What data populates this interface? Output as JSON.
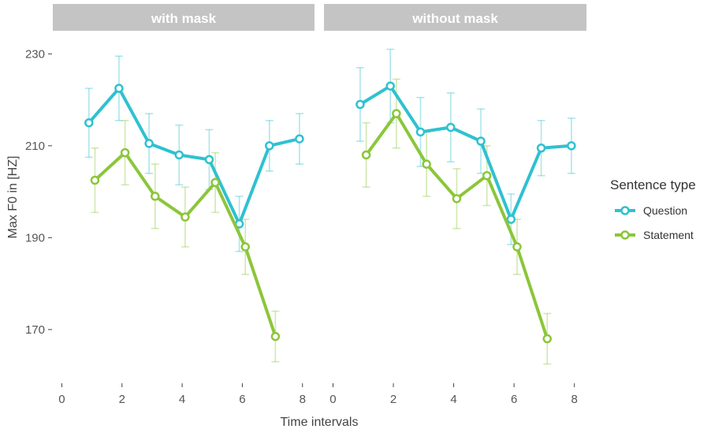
{
  "chart_data": {
    "type": "line",
    "panels": [
      "with mask",
      "without mask"
    ],
    "xlabel": "Time intervals",
    "ylabel": "Max F0 in [HZ]",
    "x_ticks": [
      0,
      2,
      4,
      6,
      8
    ],
    "y_ticks": [
      170,
      190,
      210,
      230
    ],
    "xlim": [
      -0.3,
      8.4
    ],
    "ylim": [
      159,
      234
    ],
    "grid": false,
    "legend": {
      "title": "Sentence type",
      "position": "right",
      "entries": [
        "Question",
        "Statement"
      ]
    },
    "colors": {
      "Question": "#2fc1d0",
      "Statement": "#8bc63a",
      "strip": "#c4c4c4"
    },
    "series": [
      {
        "name": "Question",
        "panel": "with mask",
        "x": [
          0.9,
          1.9,
          2.9,
          3.9,
          4.9,
          5.9,
          6.9,
          7.9
        ],
        "y": [
          215,
          222.5,
          210.5,
          208,
          207,
          193,
          210,
          211.5
        ],
        "err": [
          7.5,
          7,
          6.5,
          6.5,
          6.5,
          6,
          5.5,
          5.5
        ]
      },
      {
        "name": "Statement",
        "panel": "with mask",
        "x": [
          1.1,
          2.1,
          3.1,
          4.1,
          5.1,
          6.1,
          7.1
        ],
        "y": [
          202.5,
          208.5,
          199,
          194.5,
          202,
          188,
          168.5
        ],
        "err": [
          7,
          7,
          7,
          6.5,
          6.5,
          6,
          5.5
        ]
      },
      {
        "name": "Question",
        "panel": "without mask",
        "x": [
          0.9,
          1.9,
          2.9,
          3.9,
          4.9,
          5.9,
          6.9,
          7.9
        ],
        "y": [
          219,
          223,
          213,
          214,
          211,
          194,
          209.5,
          210
        ],
        "err": [
          8,
          8,
          7.5,
          7.5,
          7,
          5.5,
          6,
          6
        ]
      },
      {
        "name": "Statement",
        "panel": "without mask",
        "x": [
          1.1,
          2.1,
          3.1,
          4.1,
          5.1,
          6.1,
          7.1
        ],
        "y": [
          208,
          217,
          206,
          198.5,
          203.5,
          188,
          168
        ],
        "err": [
          7,
          7.5,
          7,
          6.5,
          6.5,
          6,
          5.5
        ]
      }
    ]
  }
}
